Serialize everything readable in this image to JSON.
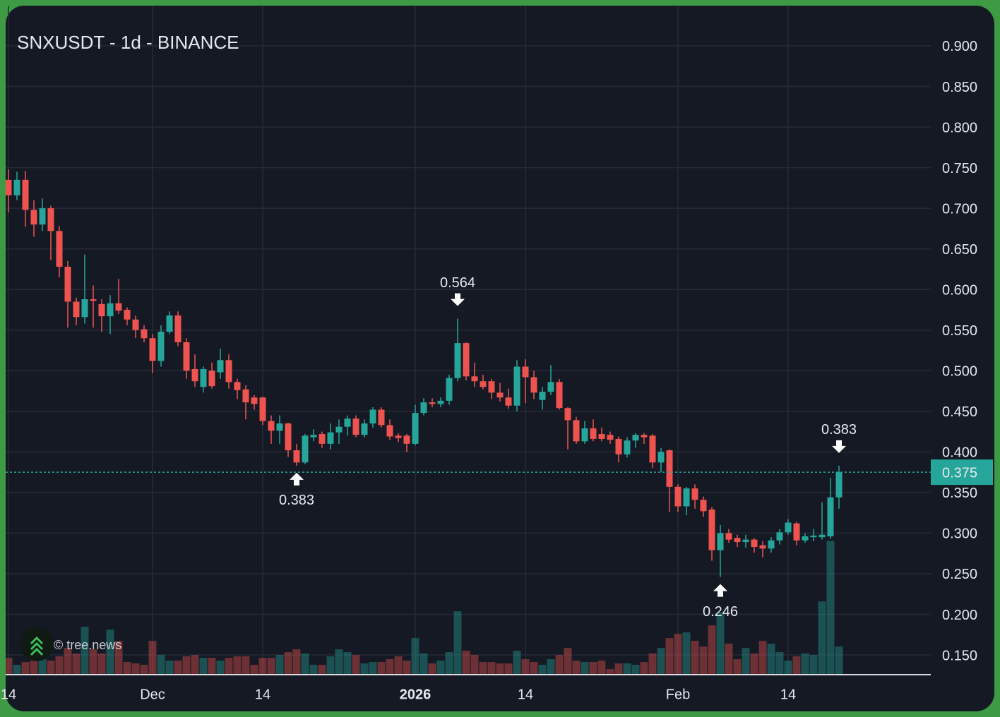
{
  "chart_data": {
    "type": "candlestick",
    "title": "SNXUSDT - 1d - BINANCE",
    "watermark": "© tree.news",
    "categories": [
      "14",
      null,
      null,
      null,
      null,
      null,
      null,
      null,
      null,
      null,
      null,
      null,
      null,
      null,
      null,
      null,
      null,
      "Dec",
      null,
      null,
      null,
      null,
      null,
      null,
      null,
      null,
      null,
      null,
      null,
      null,
      "14",
      null,
      null,
      null,
      null,
      null,
      null,
      null,
      null,
      null,
      null,
      null,
      null,
      null,
      null,
      null,
      null,
      null,
      "2026",
      null,
      null,
      null,
      null,
      null,
      null,
      null,
      null,
      null,
      null,
      null,
      null,
      "14",
      null,
      null,
      null,
      null,
      null,
      null,
      null,
      null,
      null,
      null,
      null,
      null,
      null,
      null,
      null,
      null,
      null,
      "Feb",
      null,
      null,
      null,
      null,
      null,
      null,
      null,
      null,
      null,
      null,
      null,
      null,
      "14",
      null,
      null,
      null,
      null,
      null,
      null
    ],
    "open": [
      0.735,
      0.716,
      0.735,
      0.698,
      0.68,
      0.7,
      0.672,
      0.628,
      0.585,
      0.566,
      0.588,
      0.582,
      0.567,
      0.583,
      0.575,
      0.563,
      0.551,
      0.54,
      0.512,
      0.548,
      0.568,
      0.535,
      0.502,
      0.48,
      0.5,
      0.498,
      0.513,
      0.486,
      0.477,
      0.467,
      0.467,
      0.438,
      0.426,
      0.435,
      0.402,
      0.387,
      0.418,
      0.422,
      0.41,
      0.424,
      0.431,
      0.441,
      0.421,
      0.435,
      0.452,
      0.433,
      0.42,
      0.42,
      0.41,
      0.448,
      0.461,
      0.459,
      0.463,
      0.491,
      0.534,
      0.493,
      0.487,
      0.487,
      0.473,
      0.467,
      0.457,
      0.505,
      0.492,
      0.464,
      0.474,
      0.486,
      0.454,
      0.439,
      0.413,
      0.429,
      0.422,
      0.421,
      0.416,
      0.397,
      0.414,
      0.421,
      0.42,
      0.387,
      0.402,
      0.357,
      0.333,
      0.355,
      0.341,
      0.329,
      0.279,
      0.3,
      0.294,
      0.289,
      0.292,
      0.285,
      0.281,
      0.291,
      0.301,
      0.312,
      0.291,
      0.295,
      0.295,
      0.296,
      0.344
    ],
    "high": [
      0.748,
      0.745,
      0.746,
      0.71,
      0.712,
      0.703,
      0.678,
      0.635,
      0.59,
      0.643,
      0.605,
      0.588,
      0.593,
      0.613,
      0.578,
      0.568,
      0.556,
      0.545,
      0.556,
      0.573,
      0.573,
      0.54,
      0.52,
      0.505,
      0.51,
      0.527,
      0.52,
      0.49,
      0.482,
      0.47,
      0.468,
      0.445,
      0.445,
      0.436,
      0.41,
      0.422,
      0.428,
      0.425,
      0.435,
      0.44,
      0.445,
      0.445,
      0.44,
      0.455,
      0.455,
      0.44,
      0.423,
      0.422,
      0.458,
      0.466,
      0.466,
      0.467,
      0.495,
      0.564,
      0.535,
      0.51,
      0.495,
      0.49,
      0.485,
      0.478,
      0.513,
      0.514,
      0.5,
      0.48,
      0.507,
      0.49,
      0.455,
      0.443,
      0.438,
      0.44,
      0.43,
      0.425,
      0.419,
      0.418,
      0.423,
      0.423,
      0.422,
      0.405,
      0.403,
      0.36,
      0.357,
      0.36,
      0.345,
      0.332,
      0.31,
      0.305,
      0.298,
      0.298,
      0.294,
      0.29,
      0.295,
      0.305,
      0.317,
      0.314,
      0.3,
      0.305,
      0.338,
      0.368,
      0.383
    ],
    "low": [
      0.695,
      0.71,
      0.677,
      0.665,
      0.672,
      0.636,
      0.615,
      0.553,
      0.556,
      0.558,
      0.553,
      0.548,
      0.545,
      0.57,
      0.556,
      0.54,
      0.535,
      0.497,
      0.505,
      0.545,
      0.53,
      0.49,
      0.48,
      0.473,
      0.478,
      0.49,
      0.478,
      0.465,
      0.44,
      0.452,
      0.433,
      0.41,
      0.41,
      0.394,
      0.383,
      0.385,
      0.413,
      0.405,
      0.403,
      0.41,
      0.42,
      0.418,
      0.418,
      0.43,
      0.43,
      0.415,
      0.412,
      0.4,
      0.408,
      0.445,
      0.455,
      0.455,
      0.458,
      0.487,
      0.488,
      0.48,
      0.477,
      0.465,
      0.462,
      0.453,
      0.45,
      0.46,
      0.465,
      0.452,
      0.47,
      0.452,
      0.403,
      0.41,
      0.41,
      0.413,
      0.413,
      0.41,
      0.387,
      0.393,
      0.405,
      0.41,
      0.38,
      0.375,
      0.326,
      0.326,
      0.322,
      0.33,
      0.32,
      0.266,
      0.246,
      0.288,
      0.283,
      0.282,
      0.276,
      0.27,
      0.276,
      0.286,
      0.298,
      0.285,
      0.288,
      0.29,
      0.292,
      0.293,
      0.33
    ],
    "close": [
      0.716,
      0.735,
      0.698,
      0.68,
      0.7,
      0.672,
      0.628,
      0.585,
      0.566,
      0.588,
      0.586,
      0.567,
      0.583,
      0.574,
      0.563,
      0.55,
      0.54,
      0.512,
      0.548,
      0.568,
      0.535,
      0.5,
      0.487,
      0.502,
      0.481,
      0.513,
      0.486,
      0.476,
      0.461,
      0.459,
      0.438,
      0.426,
      0.435,
      0.402,
      0.387,
      0.42,
      0.421,
      0.41,
      0.424,
      0.431,
      0.441,
      0.421,
      0.435,
      0.452,
      0.433,
      0.419,
      0.417,
      0.41,
      0.448,
      0.461,
      0.459,
      0.463,
      0.491,
      0.534,
      0.493,
      0.487,
      0.48,
      0.473,
      0.467,
      0.457,
      0.505,
      0.492,
      0.473,
      0.474,
      0.486,
      0.454,
      0.439,
      0.413,
      0.429,
      0.416,
      0.416,
      0.415,
      0.397,
      0.414,
      0.421,
      0.418,
      0.387,
      0.4,
      0.357,
      0.333,
      0.355,
      0.341,
      0.327,
      0.279,
      0.3,
      0.292,
      0.289,
      0.292,
      0.283,
      0.281,
      0.291,
      0.301,
      0.313,
      0.291,
      0.296,
      0.297,
      0.298,
      0.344,
      0.375
    ],
    "volume": [
      24,
      14,
      18,
      20,
      22,
      20,
      26,
      38,
      30,
      68,
      36,
      30,
      64,
      48,
      18,
      16,
      14,
      48,
      28,
      20,
      20,
      26,
      28,
      24,
      24,
      20,
      24,
      26,
      26,
      14,
      24,
      24,
      28,
      32,
      36,
      30,
      14,
      14,
      26,
      36,
      32,
      28,
      16,
      18,
      18,
      22,
      26,
      20,
      52,
      30,
      16,
      20,
      32,
      90,
      34,
      28,
      18,
      18,
      16,
      16,
      34,
      22,
      18,
      14,
      22,
      28,
      38,
      20,
      18,
      18,
      20,
      8,
      16,
      16,
      14,
      18,
      30,
      38,
      52,
      58,
      60,
      48,
      40,
      70,
      88,
      44,
      22,
      38,
      30,
      48,
      44,
      32,
      20,
      26,
      30,
      28,
      104,
      190,
      40
    ],
    "up_color": "#26a69a",
    "down_color": "#ef5350",
    "ylim": [
      0.1257,
      0.9495
    ],
    "yticks": [
      {
        "value": 0.15,
        "label": "0.150"
      },
      {
        "value": 0.2,
        "label": "0.200"
      },
      {
        "value": 0.25,
        "label": "0.250"
      },
      {
        "value": 0.3,
        "label": "0.300"
      },
      {
        "value": 0.35,
        "label": "0.350"
      },
      {
        "value": 0.4,
        "label": "0.400"
      },
      {
        "value": 0.45,
        "label": "0.450"
      },
      {
        "value": 0.5,
        "label": "0.500"
      },
      {
        "value": 0.55,
        "label": "0.550"
      },
      {
        "value": 0.6,
        "label": "0.600"
      },
      {
        "value": 0.65,
        "label": "0.650"
      },
      {
        "value": 0.7,
        "label": "0.700"
      },
      {
        "value": 0.75,
        "label": "0.750"
      },
      {
        "value": 0.8,
        "label": "0.800"
      },
      {
        "value": 0.85,
        "label": "0.850"
      },
      {
        "value": 0.9,
        "label": "0.900"
      }
    ],
    "grid": true,
    "last_price": 0.375,
    "annotations": [
      {
        "index": 34,
        "value": 0.383,
        "position": "below"
      },
      {
        "index": 53,
        "value": 0.564,
        "position": "above"
      },
      {
        "index": 84,
        "value": 0.246,
        "position": "below"
      },
      {
        "index": 98,
        "value": 0.383,
        "position": "above"
      }
    ]
  }
}
